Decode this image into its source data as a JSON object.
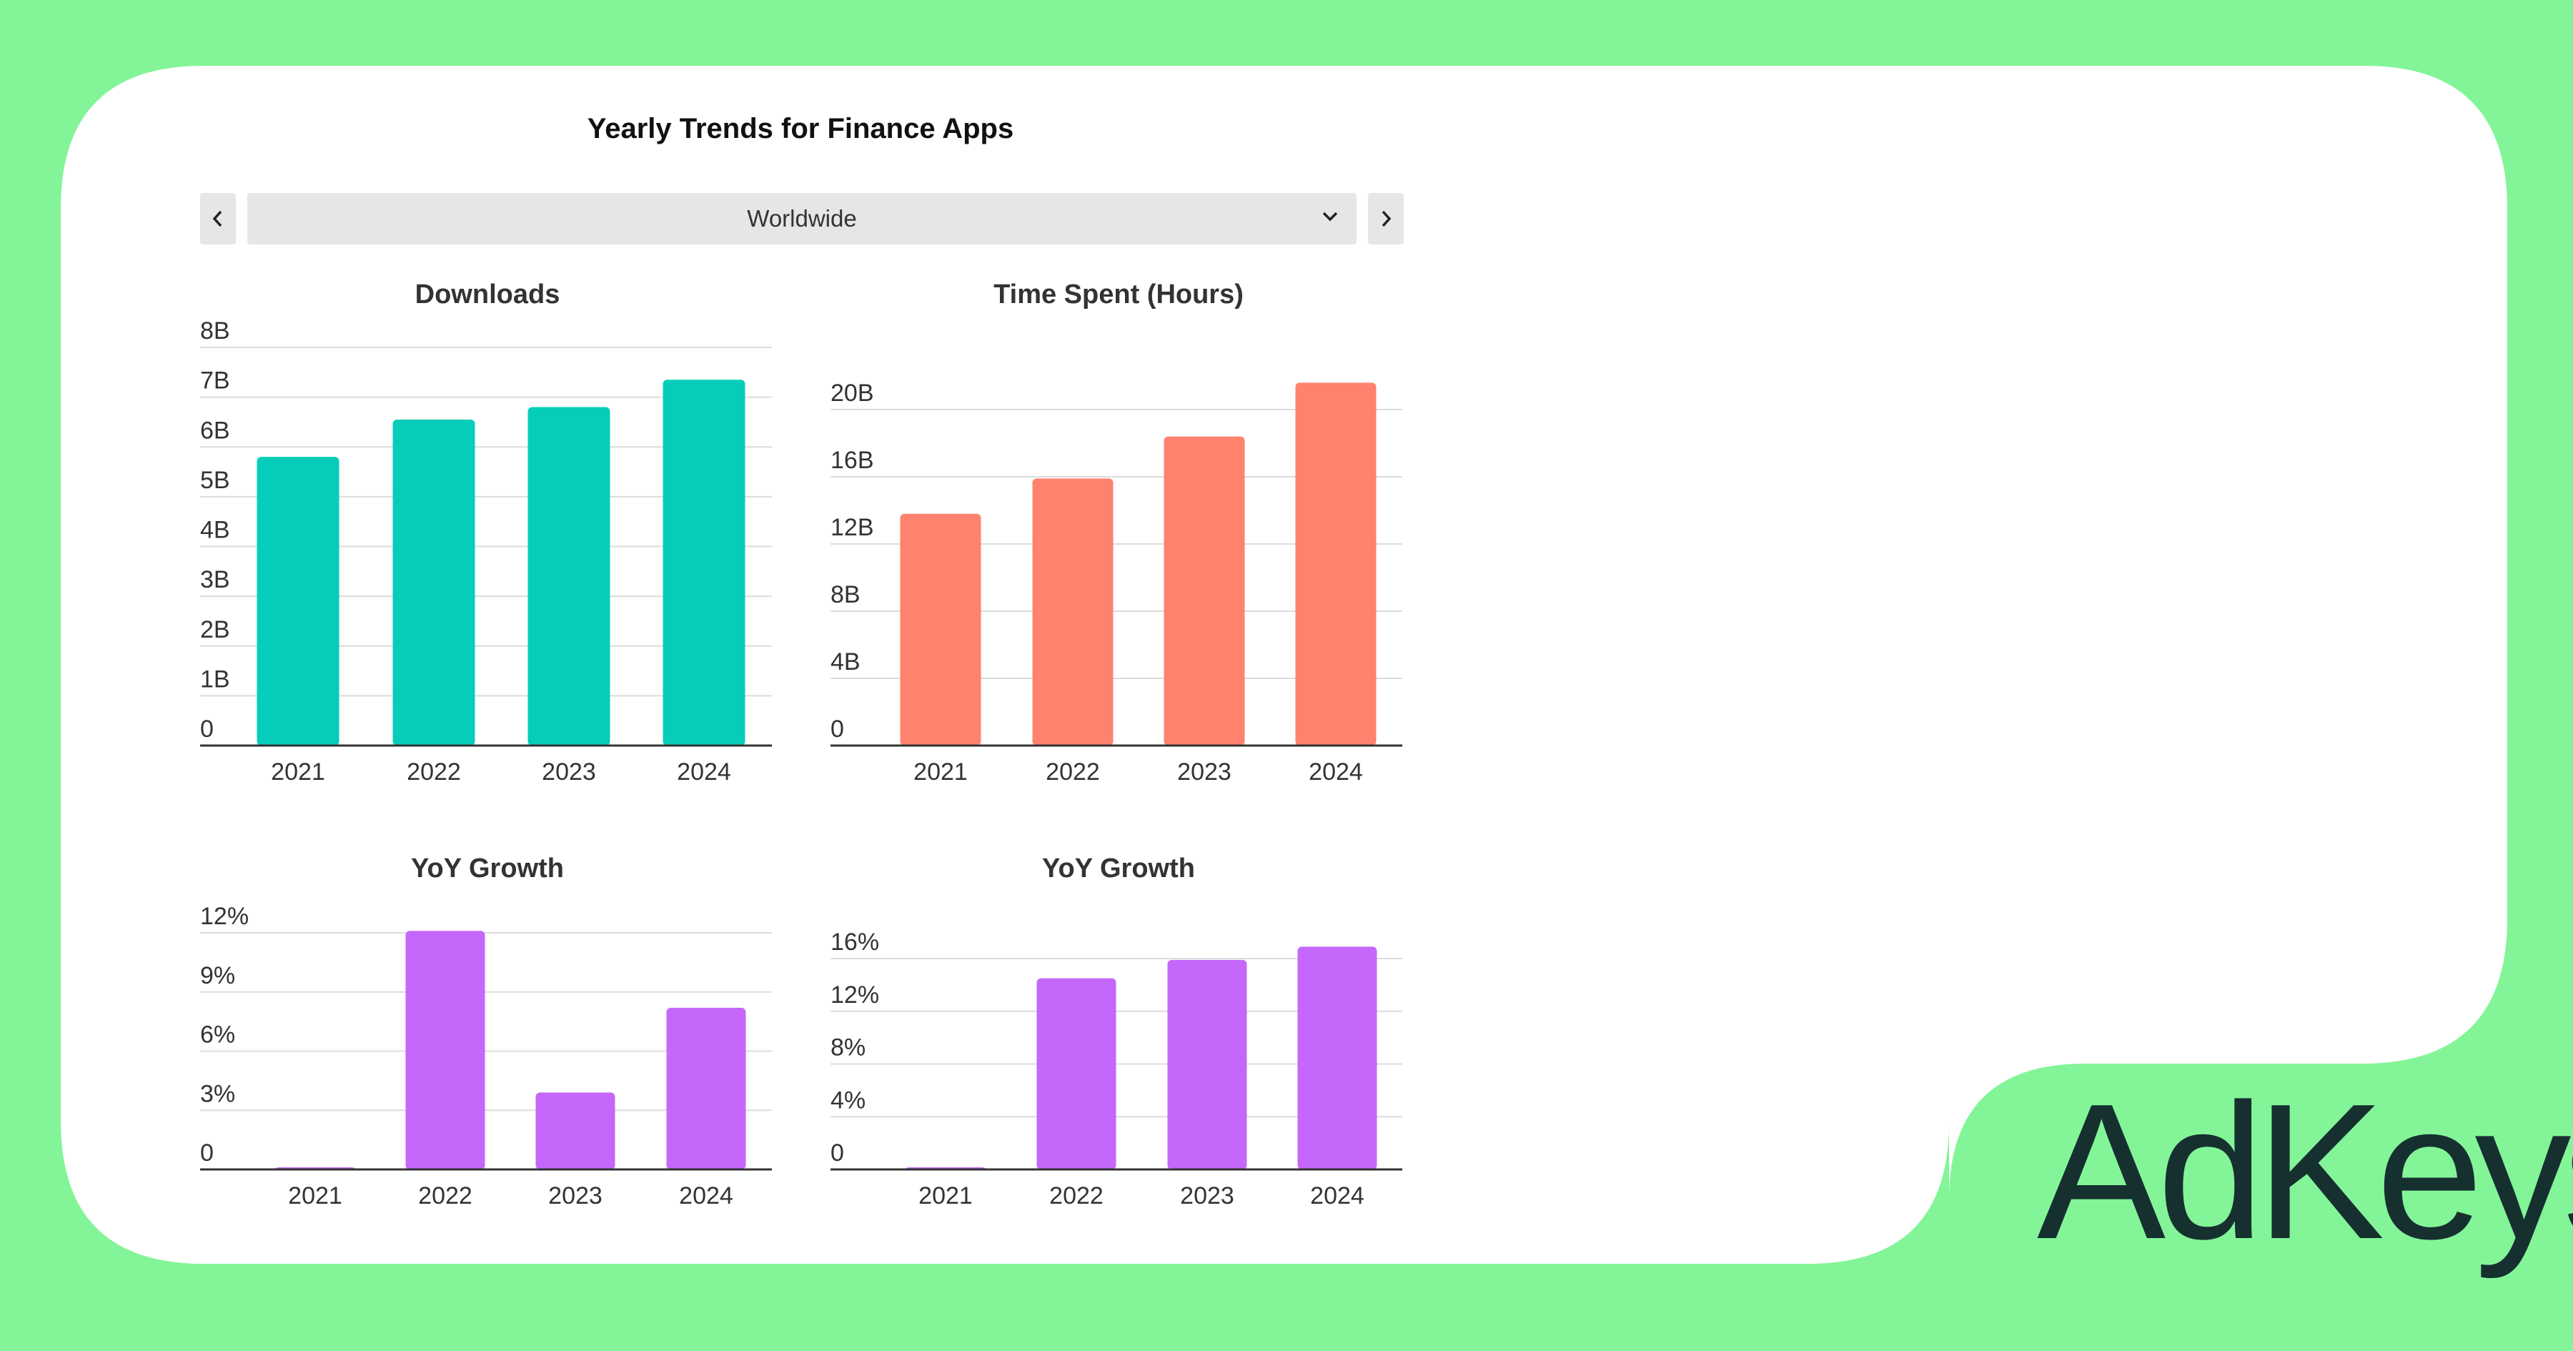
{
  "brand": "AdKeys",
  "panel": {
    "title": "Yearly Trends for Finance Apps",
    "region": "Worldwide",
    "prev_icon": "chevron-left-icon",
    "next_icon": "chevron-right-icon",
    "dropdown_icon": "chevron-down-icon"
  },
  "colors": {
    "background": "#83f598",
    "card": "#ffffff",
    "downloads": "#05cdb9",
    "time_spent": "#ff826e",
    "growth": "#c567fa",
    "brand_text": "#163030"
  },
  "chart_data": [
    {
      "type": "bar",
      "title": "Downloads",
      "categories": [
        "2021",
        "2022",
        "2023",
        "2024"
      ],
      "values": [
        5.8,
        6.55,
        6.8,
        7.35
      ],
      "ylim": [
        0,
        8
      ],
      "yticks": [
        0,
        1,
        2,
        3,
        4,
        5,
        6,
        7,
        8
      ],
      "ytick_labels": [
        "0",
        "1B",
        "2B",
        "3B",
        "4B",
        "5B",
        "6B",
        "7B",
        "8B"
      ],
      "grid": true,
      "color": "#05cdb9"
    },
    {
      "type": "bar",
      "title": "Time Spent (Hours)",
      "categories": [
        "2021",
        "2022",
        "2023",
        "2024"
      ],
      "values": [
        13.8,
        15.9,
        18.4,
        21.6
      ],
      "ylim": [
        0,
        22
      ],
      "yticks": [
        0,
        4,
        8,
        12,
        16,
        20
      ],
      "ytick_labels": [
        "0",
        "4B",
        "8B",
        "12B",
        "16B",
        "20B"
      ],
      "grid": true,
      "color": "#ff826e"
    },
    {
      "type": "bar",
      "title": "YoY Growth",
      "categories": [
        "2021",
        "2022",
        "2023",
        "2024"
      ],
      "values": [
        0,
        12.1,
        3.9,
        8.2
      ],
      "ylim": [
        0,
        12
      ],
      "yticks": [
        0,
        3,
        6,
        9,
        12
      ],
      "ytick_labels": [
        "0",
        "3%",
        "6%",
        "9%",
        "12%"
      ],
      "grid": true,
      "color": "#c567fa"
    },
    {
      "type": "bar",
      "title": "YoY Growth",
      "categories": [
        "2021",
        "2022",
        "2023",
        "2024"
      ],
      "values": [
        0,
        14.5,
        15.9,
        16.9
      ],
      "ylim": [
        0,
        16
      ],
      "yticks": [
        0,
        4,
        8,
        12,
        16
      ],
      "ytick_labels": [
        "0",
        "4%",
        "8%",
        "12%",
        "16%"
      ],
      "grid": true,
      "color": "#c567fa"
    }
  ]
}
